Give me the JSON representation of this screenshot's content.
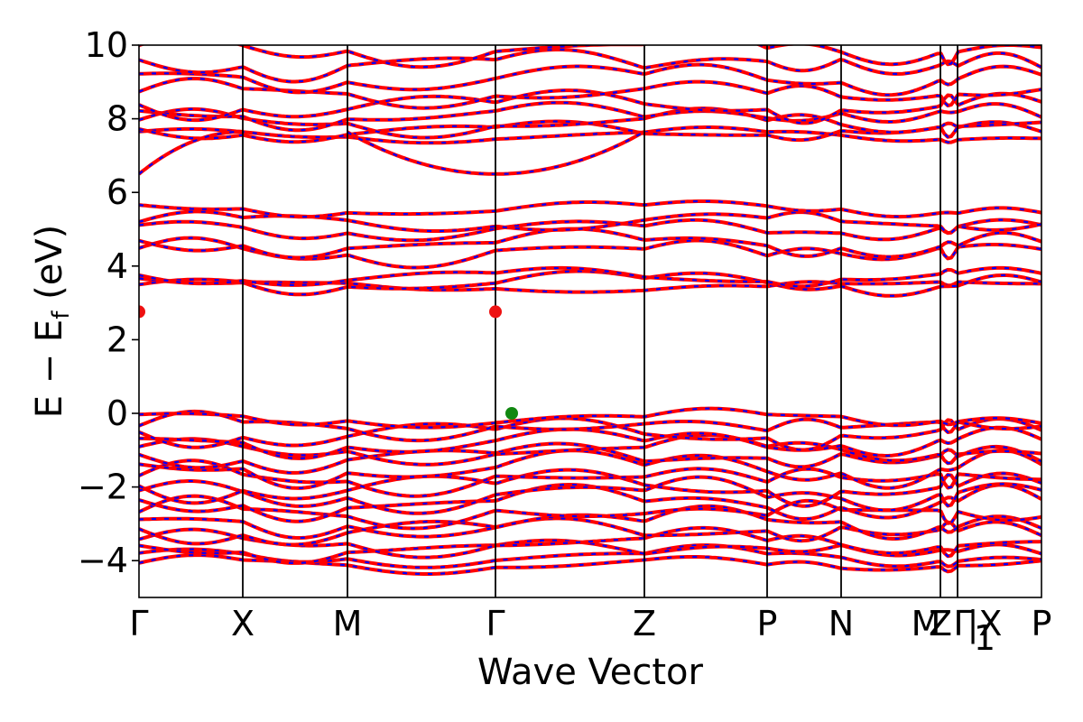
{
  "chart_data": {
    "type": "line",
    "title": "",
    "xlabel": "Wave Vector",
    "ylabel_parts": {
      "main": "E − E",
      "subscript": "f",
      "unit": " (eV)"
    },
    "ylim": [
      -5,
      10
    ],
    "yticks": [
      -4,
      -2,
      0,
      2,
      4,
      6,
      8,
      10
    ],
    "ytick_labels": [
      "−4",
      "−2",
      "0",
      "2",
      "4",
      "6",
      "8",
      "10"
    ],
    "k_path": [
      {
        "label": "Γ",
        "k": 0.0
      },
      {
        "label": "X",
        "k": 0.115
      },
      {
        "label": "M",
        "k": 0.231
      },
      {
        "label": "Γ",
        "k": 0.395
      },
      {
        "label": "Z",
        "k": 0.56
      },
      {
        "label": "P",
        "k": 0.696
      },
      {
        "label": "N",
        "k": 0.778
      },
      {
        "label": "Z",
        "k": 0.888
      },
      {
        "label": "M",
        "k": 0.888
      },
      {
        "label": "Γ",
        "k": 0.907
      },
      {
        "label": "1",
        "k": 0.907
      },
      {
        "label": "|X",
        "k": 0.907
      },
      {
        "label": "P",
        "k": 1.0
      }
    ],
    "cbm": {
      "k": 0.395,
      "E": 2.76,
      "color": "#ee1111"
    },
    "vbm": {
      "k": 0.413,
      "E": 0.0,
      "color": "#118811"
    },
    "grid": false,
    "legend": "none"
  },
  "colors": {
    "band_main": "#ff0000",
    "band_dash": "#0000ff",
    "vline": "#000000"
  }
}
